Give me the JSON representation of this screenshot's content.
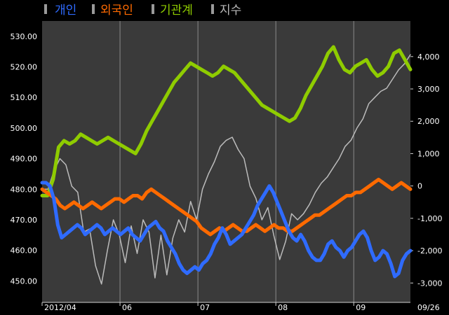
{
  "chart_data": {
    "type": "line",
    "legend_position": "top-left",
    "grid": true,
    "left_axis": {
      "ylim": [
        443,
        535
      ],
      "ticks": [
        "450.00",
        "460.00",
        "470.00",
        "480.00",
        "490.00",
        "500.00",
        "510.00",
        "520.00",
        "530.00"
      ],
      "tick_values": [
        450,
        460,
        470,
        480,
        490,
        500,
        510,
        520,
        530
      ]
    },
    "right_axis": {
      "ylim": [
        -3600,
        5100
      ],
      "ticks": [
        "-3,000",
        "-2,000",
        "-1,000",
        "0",
        "1,000",
        "2,000",
        "3,000",
        "4,000"
      ],
      "tick_values": [
        -3000,
        -2000,
        -1000,
        0,
        1000,
        2000,
        3000,
        4000
      ]
    },
    "x_axis": {
      "range": [
        0,
        104
      ],
      "ticks": [
        {
          "label": "2012/04",
          "x": 0
        },
        {
          "label": "06",
          "x": 22
        },
        {
          "label": "07",
          "x": 44
        },
        {
          "label": "08",
          "x": 66
        },
        {
          "label": "09",
          "x": 88
        }
      ],
      "end_label": "09/26"
    },
    "series": [
      {
        "name": "개인",
        "color": "#2f6bff",
        "axis": "right",
        "width": 5,
        "values": [
          100,
          100,
          0,
          -400,
          -1200,
          -1600,
          -1500,
          -1400,
          -1300,
          -1200,
          -1300,
          -1500,
          -1400,
          -1300,
          -1200,
          -1300,
          -1500,
          -1400,
          -1300,
          -1400,
          -1500,
          -1400,
          -1300,
          -1500,
          -1600,
          -1700,
          -1500,
          -1300,
          -1200,
          -1100,
          -1300,
          -1400,
          -1700,
          -1900,
          -2100,
          -2400,
          -2600,
          -2700,
          -2600,
          -2500,
          -2600,
          -2400,
          -2300,
          -2100,
          -1800,
          -1600,
          -1300,
          -1500,
          -1800,
          -1700,
          -1600,
          -1500,
          -1300,
          -1100,
          -900,
          -600,
          -400,
          -200,
          0,
          -200,
          -500,
          -800,
          -1100,
          -1400,
          -1600,
          -1700,
          -1500,
          -1700,
          -2000,
          -2200,
          -2300,
          -2300,
          -2100,
          -1800,
          -1700,
          -1900,
          -2000,
          -2200,
          -2000,
          -1900,
          -1700,
          -1500,
          -1400,
          -1600,
          -2000,
          -2300,
          -2200,
          -2000,
          -2100,
          -2400,
          -2800,
          -2700,
          -2300,
          -2100,
          -2000
        ]
      },
      {
        "name": "외국인",
        "color": "#ff6a00",
        "axis": "right",
        "width": 5,
        "values": [
          -100,
          -200,
          -300,
          -400,
          -600,
          -700,
          -600,
          -500,
          -600,
          -700,
          -600,
          -500,
          -600,
          -700,
          -600,
          -500,
          -400,
          -400,
          -500,
          -400,
          -300,
          -300,
          -400,
          -200,
          -100,
          -200,
          -300,
          -400,
          -500,
          -600,
          -700,
          -800,
          -900,
          -1000,
          -1100,
          -1300,
          -1400,
          -1500,
          -1400,
          -1300,
          -1400,
          -1300,
          -1200,
          -1300,
          -1400,
          -1400,
          -1300,
          -1200,
          -1300,
          -1400,
          -1300,
          -1200,
          -1300,
          -1300,
          -1400,
          -1400,
          -1300,
          -1200,
          -1100,
          -1000,
          -900,
          -900,
          -800,
          -700,
          -600,
          -500,
          -400,
          -300,
          -300,
          -200,
          -200,
          -100,
          0,
          100,
          200,
          100,
          0,
          -100,
          0,
          100,
          0,
          -100
        ]
      },
      {
        "name": "기관계",
        "color": "#8fcc00",
        "axis": "right",
        "width": 5,
        "values": [
          -300,
          -300,
          200,
          1200,
          1400,
          1300,
          1400,
          1600,
          1500,
          1400,
          1300,
          1400,
          1500,
          1400,
          1300,
          1200,
          1100,
          1000,
          1300,
          1700,
          2000,
          2300,
          2600,
          2900,
          3200,
          3400,
          3600,
          3800,
          3700,
          3600,
          3500,
          3400,
          3500,
          3700,
          3600,
          3500,
          3300,
          3100,
          2900,
          2700,
          2500,
          2400,
          2300,
          2200,
          2100,
          2000,
          2100,
          2400,
          2800,
          3100,
          3400,
          3700,
          4100,
          4300,
          3900,
          3600,
          3500,
          3700,
          3800,
          3900,
          3600,
          3400,
          3500,
          3700,
          4100,
          4200,
          3900,
          3600
        ]
      },
      {
        "name": "지수",
        "color": "#bbbbbb",
        "axis": "left",
        "width": 1.5,
        "values": [
          480,
          480,
          486,
          490,
          488,
          481,
          479,
          466,
          467,
          455,
          449,
          460,
          470,
          465,
          456,
          468,
          459,
          470,
          466,
          451,
          465,
          452,
          464,
          470,
          466,
          476,
          470,
          480,
          485,
          489,
          494,
          496,
          497,
          493,
          490,
          481,
          477,
          470,
          474,
          465,
          457,
          463,
          472,
          470,
          472,
          475,
          479,
          482,
          484,
          487,
          490,
          494,
          496,
          500,
          503,
          508,
          510,
          512,
          513,
          516,
          519,
          521,
          524
        ]
      }
    ]
  }
}
